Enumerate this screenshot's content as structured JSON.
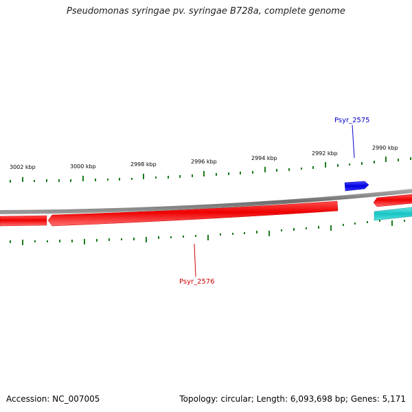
{
  "title": "Pseudomonas syringae pv. syringae B728a, complete genome",
  "footer": {
    "accession": "Accession: NC_007005",
    "summary": "Topology: circular; Length: 6,093,698 bp; Genes: 5,171"
  },
  "colors": {
    "backbone": "#808080",
    "forward_gene": "#ff0000",
    "reverse_gene": "#ff0000",
    "highlight_gene_blue": "#0000ee",
    "highlight_gene_cyan": "#22cccc",
    "tick": "#1a7a1a"
  },
  "ruler": {
    "labels": [
      "3002 kbp",
      "3000 kbp",
      "2998 kbp",
      "2996 kbp",
      "2994 kbp",
      "2992 kbp",
      "2990 kbp"
    ]
  },
  "genes": {
    "psyr_2575": {
      "label": "Psyr_2575",
      "color": "#0000cc"
    },
    "psyr_2576": {
      "label": "Psyr_2576",
      "color": "#cc0000"
    }
  }
}
